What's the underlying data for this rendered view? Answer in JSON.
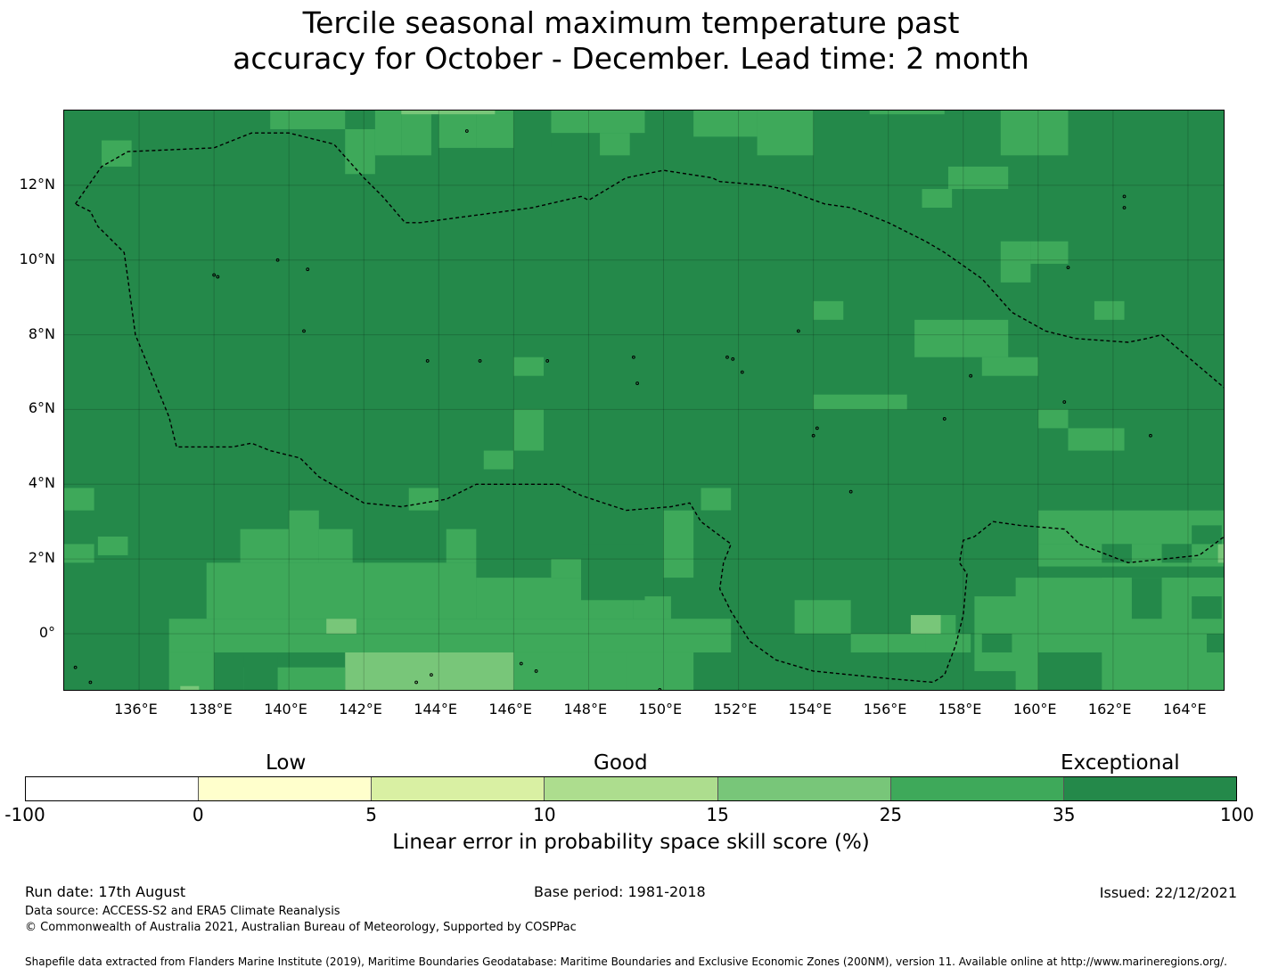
{
  "title_line1": "Tercile seasonal maximum temperature past",
  "title_line2": "accuracy for October - December. Lead time: 2 month",
  "map": {
    "lon_range": [
      134.0,
      165.0
    ],
    "lat_range": [
      -1.55,
      14.0
    ],
    "lon_ticks": [
      "136°E",
      "138°E",
      "140°E",
      "142°E",
      "144°E",
      "146°E",
      "148°E",
      "150°E",
      "152°E",
      "154°E",
      "156°E",
      "158°E",
      "160°E",
      "162°E",
      "164°E"
    ],
    "lat_ticks": [
      "12°N",
      "10°N",
      "8°N",
      "6°N",
      "4°N",
      "2°N",
      "0°"
    ],
    "grid": true,
    "colors": {
      "exceptional": "#24894a",
      "good_high": "#3ea95a",
      "good_mid": "#78c679",
      "good_low": "#addd8e",
      "low_high": "#d9f0a3",
      "low_low": "#ffffcc",
      "negative": "#ffffff",
      "land": "#000000",
      "boundary": "#000000"
    },
    "boundary_style": "dashed",
    "boundary_lonlat": [
      [
        134.3,
        11.5
      ],
      [
        135.0,
        12.5
      ],
      [
        135.7,
        12.9
      ],
      [
        138.0,
        13.0
      ],
      [
        139.0,
        13.4
      ],
      [
        140.0,
        13.4
      ],
      [
        141.2,
        13.1
      ],
      [
        142.0,
        12.2
      ],
      [
        142.5,
        11.7
      ],
      [
        143.1,
        11.0
      ],
      [
        143.5,
        11.0
      ],
      [
        146.5,
        11.4
      ],
      [
        147.8,
        11.7
      ],
      [
        148.0,
        11.6
      ],
      [
        149.0,
        12.2
      ],
      [
        150.0,
        12.4
      ],
      [
        151.3,
        12.2
      ],
      [
        151.5,
        12.1
      ],
      [
        152.7,
        12.0
      ],
      [
        153.2,
        11.9
      ],
      [
        154.3,
        11.5
      ],
      [
        155.0,
        11.4
      ],
      [
        156.0,
        11.0
      ],
      [
        157.0,
        10.5
      ],
      [
        157.5,
        10.2
      ],
      [
        158.5,
        9.5
      ],
      [
        159.3,
        8.6
      ],
      [
        160.2,
        8.1
      ],
      [
        161.0,
        7.9
      ],
      [
        162.4,
        7.8
      ],
      [
        162.9,
        7.9
      ],
      [
        163.3,
        8.0
      ],
      [
        165.3,
        6.3
      ],
      [
        165.5,
        6.2
      ],
      [
        165.7,
        3.2
      ],
      [
        165.5,
        3.0
      ],
      [
        164.3,
        2.1
      ],
      [
        162.4,
        1.9
      ],
      [
        161.1,
        2.4
      ],
      [
        160.7,
        2.8
      ],
      [
        159.5,
        2.9
      ],
      [
        158.8,
        3.0
      ],
      [
        158.3,
        2.6
      ],
      [
        158.0,
        2.5
      ],
      [
        157.9,
        1.9
      ],
      [
        158.1,
        1.6
      ],
      [
        158.0,
        0.5
      ],
      [
        157.8,
        -0.3
      ],
      [
        157.5,
        -1.1
      ],
      [
        157.2,
        -1.3
      ],
      [
        156.0,
        -1.2
      ],
      [
        154.0,
        -1.0
      ],
      [
        153.0,
        -0.7
      ],
      [
        152.3,
        -0.2
      ],
      [
        151.8,
        0.6
      ],
      [
        151.5,
        1.2
      ],
      [
        151.6,
        1.9
      ],
      [
        151.8,
        2.4
      ],
      [
        151.0,
        3.0
      ],
      [
        150.7,
        3.5
      ],
      [
        150.2,
        3.4
      ],
      [
        149.0,
        3.3
      ],
      [
        147.8,
        3.7
      ],
      [
        147.2,
        4.0
      ],
      [
        146.0,
        4.0
      ],
      [
        145.0,
        4.0
      ],
      [
        144.2,
        3.6
      ],
      [
        143.0,
        3.4
      ],
      [
        142.0,
        3.5
      ],
      [
        140.8,
        4.2
      ],
      [
        140.3,
        4.7
      ],
      [
        139.5,
        4.9
      ],
      [
        139.0,
        5.1
      ],
      [
        138.5,
        5.0
      ],
      [
        137.6,
        5.0
      ],
      [
        137.0,
        5.0
      ],
      [
        136.8,
        5.8
      ],
      [
        135.9,
        8.0
      ],
      [
        135.7,
        9.5
      ],
      [
        135.6,
        10.2
      ],
      [
        134.9,
        10.9
      ],
      [
        134.7,
        11.3
      ],
      [
        134.3,
        11.5
      ]
    ],
    "cells": [
      [
        144.0,
        145.0,
        13.0,
        14.0,
        "good_high"
      ],
      [
        145.0,
        146.0,
        13.0,
        14.0,
        "good_high"
      ],
      [
        146.0,
        147.0,
        13.0,
        14.0,
        "exceptional"
      ],
      [
        135.0,
        135.8,
        12.5,
        13.2,
        "good_high"
      ],
      [
        141.5,
        142.3,
        12.3,
        13.5,
        "good_high"
      ],
      [
        142.3,
        143.0,
        12.8,
        14.0,
        "good_high"
      ],
      [
        143.0,
        143.8,
        12.8,
        14.0,
        "good_high"
      ],
      [
        139.5,
        141.5,
        13.5,
        14.0,
        "good_high"
      ],
      [
        143.0,
        145.5,
        13.9,
        14.0,
        "good_mid"
      ],
      [
        147.0,
        149.5,
        13.4,
        14.0,
        "good_high"
      ],
      [
        148.3,
        149.1,
        12.8,
        13.4,
        "good_high"
      ],
      [
        150.8,
        152.5,
        13.3,
        14.0,
        "good_high"
      ],
      [
        152.5,
        154.0,
        12.8,
        14.0,
        "good_high"
      ],
      [
        155.5,
        157.5,
        13.9,
        14.0,
        "good_high"
      ],
      [
        159.0,
        160.8,
        12.8,
        14.0,
        "good_high"
      ],
      [
        157.6,
        159.2,
        11.9,
        12.5,
        "good_high"
      ],
      [
        156.9,
        157.7,
        11.4,
        11.9,
        "good_high"
      ],
      [
        159.0,
        159.8,
        9.4,
        10.5,
        "good_high"
      ],
      [
        159.8,
        160.8,
        9.9,
        10.5,
        "good_high"
      ],
      [
        154.0,
        154.8,
        8.4,
        8.9,
        "good_high"
      ],
      [
        161.5,
        162.3,
        8.4,
        8.9,
        "good_high"
      ],
      [
        156.7,
        159.2,
        7.4,
        8.4,
        "good_high"
      ],
      [
        158.5,
        160.0,
        6.9,
        7.4,
        "good_high"
      ],
      [
        146.0,
        146.8,
        6.9,
        7.4,
        "good_high"
      ],
      [
        154.0,
        156.5,
        6.0,
        6.4,
        "good_high"
      ],
      [
        146.0,
        146.8,
        4.9,
        6.0,
        "good_high"
      ],
      [
        145.2,
        146.0,
        4.4,
        4.9,
        "good_high"
      ],
      [
        160.0,
        160.8,
        5.5,
        6.0,
        "good_high"
      ],
      [
        160.8,
        162.3,
        4.9,
        5.5,
        "good_high"
      ],
      [
        165.0,
        165.2,
        3.0,
        5.0,
        "good_high"
      ],
      [
        134.0,
        134.8,
        3.3,
        3.9,
        "good_high"
      ],
      [
        143.2,
        144.0,
        3.3,
        3.9,
        "good_high"
      ],
      [
        151.0,
        151.8,
        3.3,
        3.9,
        "good_high"
      ],
      [
        160.0,
        165.2,
        2.4,
        3.3,
        "good_high"
      ],
      [
        160.0,
        165.2,
        1.8,
        2.4,
        "good_high"
      ],
      [
        134.9,
        135.7,
        2.1,
        2.6,
        "good_high"
      ],
      [
        134.0,
        134.8,
        1.9,
        2.4,
        "good_high"
      ],
      [
        138.7,
        140.0,
        1.9,
        2.8,
        "good_high"
      ],
      [
        140.0,
        140.8,
        1.9,
        3.3,
        "good_high"
      ],
      [
        140.8,
        141.7,
        1.9,
        2.8,
        "good_high"
      ],
      [
        144.2,
        145.0,
        1.9,
        2.8,
        "good_high"
      ],
      [
        147.0,
        147.8,
        1.5,
        2.0,
        "good_high"
      ],
      [
        150.0,
        150.8,
        1.5,
        3.3,
        "good_high"
      ],
      [
        137.8,
        145.0,
        0.4,
        1.9,
        "good_high"
      ],
      [
        145.0,
        149.2,
        0.4,
        1.5,
        "good_high"
      ],
      [
        149.2,
        150.2,
        0.4,
        1.0,
        "good_high"
      ],
      [
        136.8,
        144.0,
        -0.5,
        0.4,
        "good_high"
      ],
      [
        144.0,
        150.0,
        -0.5,
        0.4,
        "good_high"
      ],
      [
        150.0,
        151.8,
        -0.5,
        0.4,
        "good_high"
      ],
      [
        141.0,
        141.8,
        0.0,
        0.4,
        "good_mid"
      ],
      [
        141.5,
        146.0,
        -1.55,
        -0.5,
        "good_mid"
      ],
      [
        142.6,
        144.8,
        -1.55,
        -0.6,
        "good_mid"
      ],
      [
        136.8,
        138.0,
        -1.55,
        -0.5,
        "good_high"
      ],
      [
        138.8,
        141.5,
        -1.55,
        -0.9,
        "good_high"
      ],
      [
        146.0,
        149.0,
        -1.55,
        -0.5,
        "good_high"
      ],
      [
        149.0,
        150.8,
        -1.55,
        -0.5,
        "good_high"
      ],
      [
        153.5,
        155.0,
        0.0,
        0.9,
        "good_high"
      ],
      [
        155.0,
        158.2,
        -0.5,
        0.0,
        "good_high"
      ],
      [
        157.0,
        157.8,
        -0.5,
        0.5,
        "good_high"
      ],
      [
        156.6,
        157.4,
        0.0,
        0.5,
        "good_mid"
      ],
      [
        158.3,
        160.0,
        -1.0,
        1.0,
        "good_high"
      ],
      [
        159.4,
        165.2,
        -1.55,
        1.5,
        "good_high"
      ],
      [
        161.7,
        162.5,
        0.4,
        1.5,
        "good_high"
      ],
      [
        163.3,
        165.2,
        0.4,
        1.5,
        "good_high"
      ],
      [
        164.8,
        165.2,
        1.9,
        2.4,
        "good_mid"
      ],
      [
        136.9,
        137.8,
        -1.55,
        -1.4,
        "good_high"
      ],
      [
        137.1,
        137.6,
        -1.55,
        -1.4,
        "good_mid"
      ]
    ],
    "cells_dark": [
      [
        160.0,
        161.7,
        -1.55,
        -0.5
      ],
      [
        161.7,
        162.5,
        1.9,
        2.4
      ],
      [
        163.3,
        164.1,
        1.9,
        2.4
      ],
      [
        164.1,
        164.9,
        2.4,
        2.9
      ],
      [
        162.5,
        163.3,
        0.4,
        1.5
      ],
      [
        164.1,
        164.9,
        0.4,
        1.0
      ],
      [
        164.5,
        165.2,
        -0.5,
        0.0
      ],
      [
        158.5,
        159.3,
        -0.5,
        0.0
      ],
      [
        138.8,
        139.7,
        -1.55,
        -0.6
      ],
      [
        151.0,
        151.8,
        1.9,
        3.3
      ],
      [
        147.8,
        149.5,
        0.9,
        2.4
      ]
    ],
    "islands_lonlat": [
      [
        144.75,
        13.45
      ],
      [
        138.1,
        9.55
      ],
      [
        138.0,
        9.6
      ],
      [
        139.7,
        10.0
      ],
      [
        140.5,
        9.75
      ],
      [
        140.4,
        8.1
      ],
      [
        143.7,
        7.3
      ],
      [
        145.1,
        7.3
      ],
      [
        146.9,
        7.3
      ],
      [
        149.2,
        7.4
      ],
      [
        149.3,
        6.7
      ],
      [
        151.7,
        7.4
      ],
      [
        151.85,
        7.35
      ],
      [
        152.1,
        7.0
      ],
      [
        153.6,
        8.1
      ],
      [
        158.2,
        6.9
      ],
      [
        157.5,
        5.75
      ],
      [
        154.1,
        5.5
      ],
      [
        154.0,
        5.3
      ],
      [
        155.0,
        3.8
      ],
      [
        160.7,
        6.2
      ],
      [
        163.0,
        5.3
      ],
      [
        162.3,
        11.7
      ],
      [
        162.3,
        11.4
      ],
      [
        166.0,
        11.5
      ],
      [
        160.8,
        9.8
      ],
      [
        146.2,
        -0.8
      ],
      [
        146.6,
        -1.0
      ],
      [
        143.4,
        -1.3
      ],
      [
        143.8,
        -1.1
      ],
      [
        149.9,
        -1.5
      ],
      [
        134.3,
        -0.9
      ],
      [
        134.7,
        -1.3
      ]
    ]
  },
  "colorbar": {
    "heading_low": "Low",
    "heading_good": "Good",
    "heading_exceptional": "Exceptional",
    "ticks": [
      "-100",
      "0",
      "5",
      "10",
      "15",
      "25",
      "35",
      "100"
    ],
    "segment_colors": [
      "#ffffff",
      "#ffffcc",
      "#d9f0a3",
      "#addd8e",
      "#78c679",
      "#3ea95a",
      "#24894a"
    ],
    "label": "Linear error in probability space skill score (%)"
  },
  "footer": {
    "run_date": "Run date: 17th August",
    "base_period": "Base period: 1981-2018",
    "issued": "Issued: 22/12/2021",
    "data_source": "Data source: ACCESS-S2 and ERA5 Climate Reanalysis",
    "copyright": "© Commonwealth of Australia 2021, Australian Bureau of Meteorology, Supported by COSPPac",
    "shapefile_note": "Shapefile data extracted from Flanders Marine Institute (2019), Maritime Boundaries Geodatabase: Maritime Boundaries and Exclusive Economic Zones (200NM), version 11. Available online at http://www.marineregions.org/."
  }
}
